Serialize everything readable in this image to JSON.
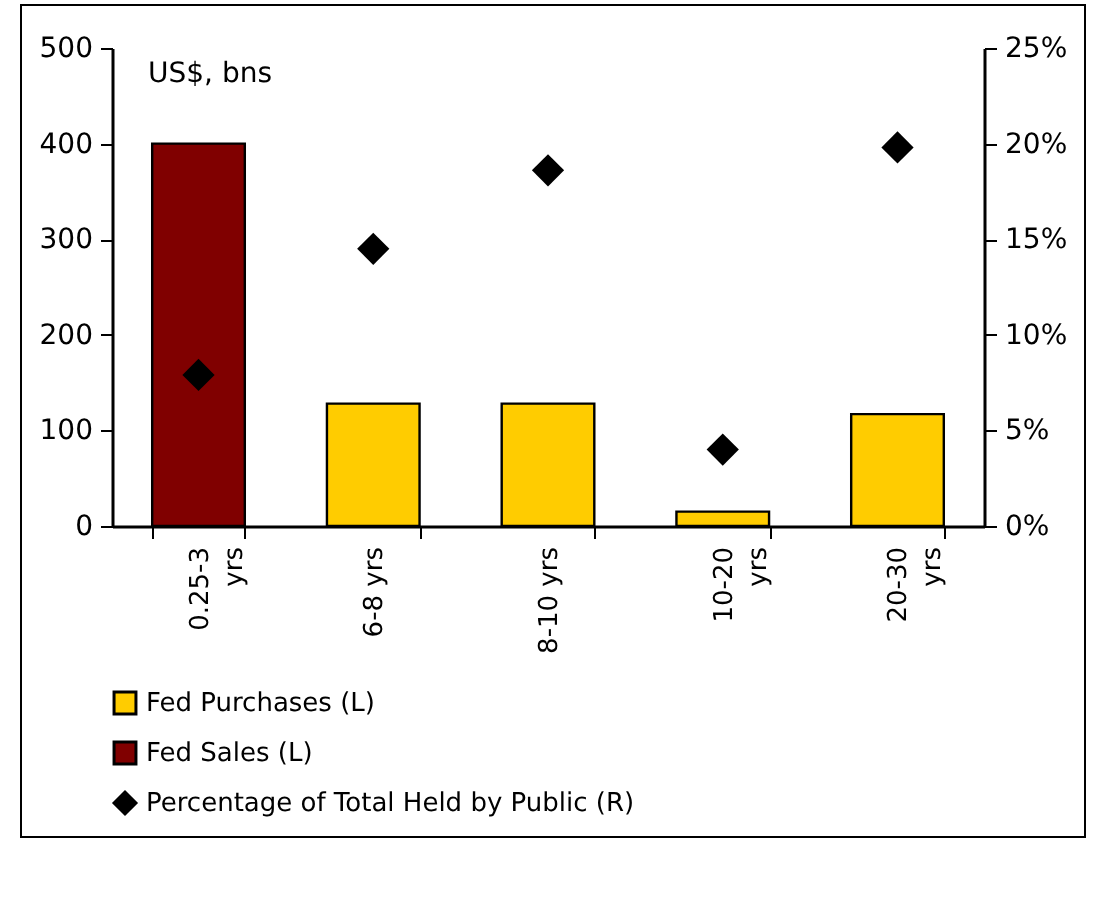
{
  "chart_data": {
    "type": "bar",
    "categories": [
      "0.25-3 yrs",
      "6-8 yrs",
      "8-10 yrs",
      "10-20 yrs",
      "20-30 yrs"
    ],
    "series": [
      {
        "name": "Fed Purchases (L)",
        "color": "#ffcc00",
        "values": [
          null,
          128,
          128,
          15,
          117
        ]
      },
      {
        "name": "Fed Sales (L)",
        "color": "#800000",
        "values": [
          400,
          null,
          null,
          null,
          null
        ]
      },
      {
        "name": "Percentage of Total Held by Public (R)",
        "type": "scatter",
        "axis": "y2",
        "color": "#000000",
        "marker": "diamond",
        "values": [
          7.9,
          14.5,
          18.6,
          4.0,
          19.8
        ]
      }
    ],
    "ylim": [
      0,
      500
    ],
    "yticks": [
      0,
      100,
      200,
      300,
      400,
      500
    ],
    "y2lim": [
      0,
      25
    ],
    "y2ticks": [
      {
        "value": 0,
        "label": "0%"
      },
      {
        "value": 5,
        "label": "5%"
      },
      {
        "value": 10,
        "label": "10%"
      },
      {
        "value": 15,
        "label": "15%"
      },
      {
        "value": 20,
        "label": "20%"
      },
      {
        "value": 25,
        "label": "25%"
      }
    ],
    "annotations": [
      "US$, bns"
    ],
    "grid": false,
    "legend": "bottom"
  }
}
